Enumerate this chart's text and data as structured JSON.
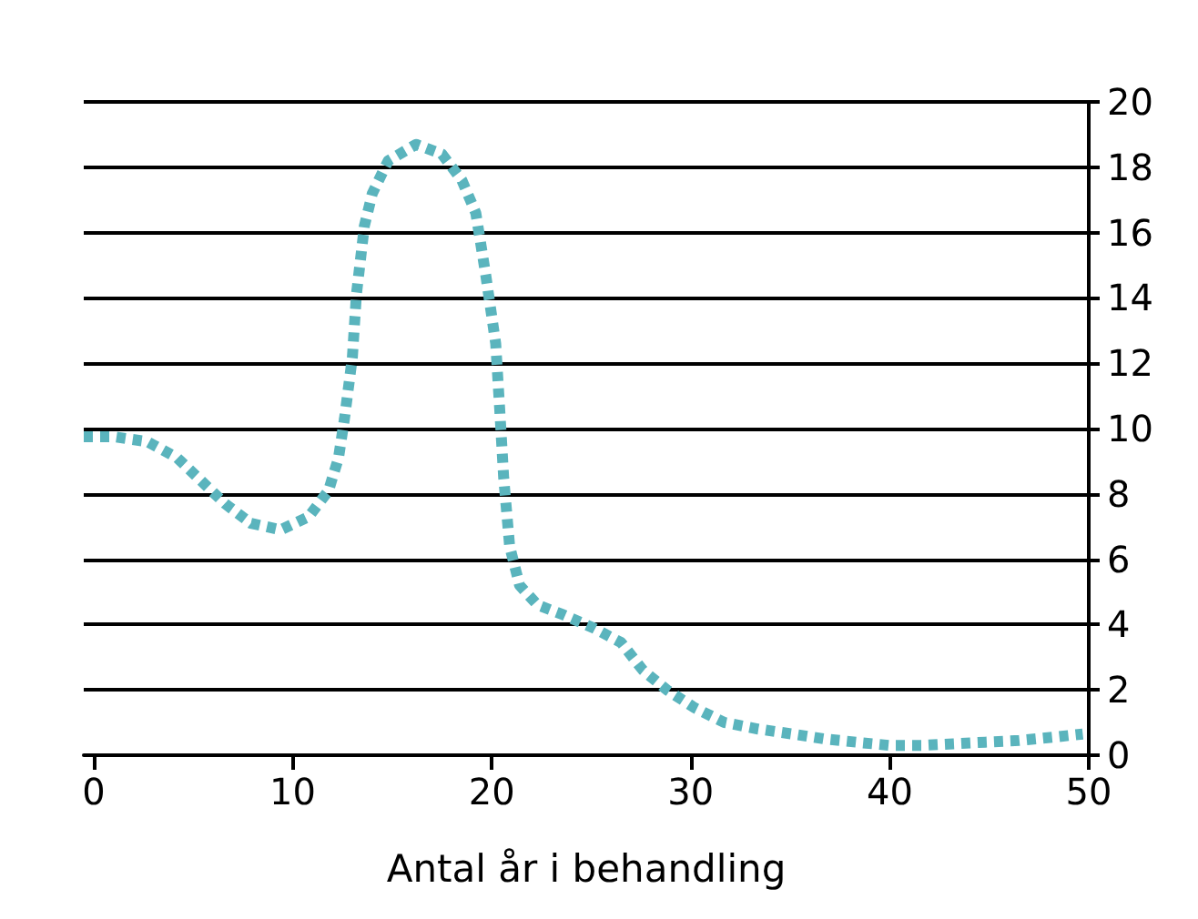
{
  "chart_data": {
    "type": "line",
    "xlabel": "Antal år i behandling",
    "x": [
      -0.5,
      1.0,
      2.7,
      4.2,
      5.4,
      6.6,
      7.9,
      9.4,
      10.8,
      11.8,
      12.3,
      12.6,
      13.0,
      13.2,
      13.6,
      14.0,
      14.8,
      16.2,
      17.5,
      18.5,
      19.2,
      19.7,
      20.2,
      20.4,
      20.6,
      20.9,
      21.4,
      22.3,
      23.6,
      25.1,
      26.5,
      27.6,
      28.8,
      30.2,
      31.7,
      33.4,
      35.1,
      36.7,
      38.3,
      40.0,
      41.6,
      43.2,
      44.8,
      46.5,
      48.2,
      49.7
    ],
    "series": [
      {
        "color": "#5ab4bd",
        "values": [
          9.75,
          9.75,
          9.6,
          9.1,
          8.4,
          7.7,
          7.1,
          6.9,
          7.3,
          8.1,
          9.1,
          10.3,
          12.2,
          14.1,
          16.2,
          17.2,
          18.2,
          18.7,
          18.4,
          17.6,
          16.6,
          14.7,
          12.6,
          10.6,
          8.5,
          6.4,
          5.2,
          4.6,
          4.3,
          3.9,
          3.45,
          2.6,
          2.0,
          1.45,
          1.0,
          0.8,
          0.65,
          0.5,
          0.4,
          0.3,
          0.3,
          0.35,
          0.4,
          0.45,
          0.55,
          0.65
        ]
      }
    ],
    "xlim": [
      -0.5,
      50
    ],
    "xticks": [
      0,
      10,
      20,
      30,
      40,
      50
    ],
    "ylim": [
      0,
      20
    ],
    "yticks": [
      0,
      2,
      4,
      6,
      8,
      10,
      12,
      14,
      16,
      18,
      20
    ],
    "grid": "y",
    "line_style": "dotted",
    "marker": "none"
  }
}
